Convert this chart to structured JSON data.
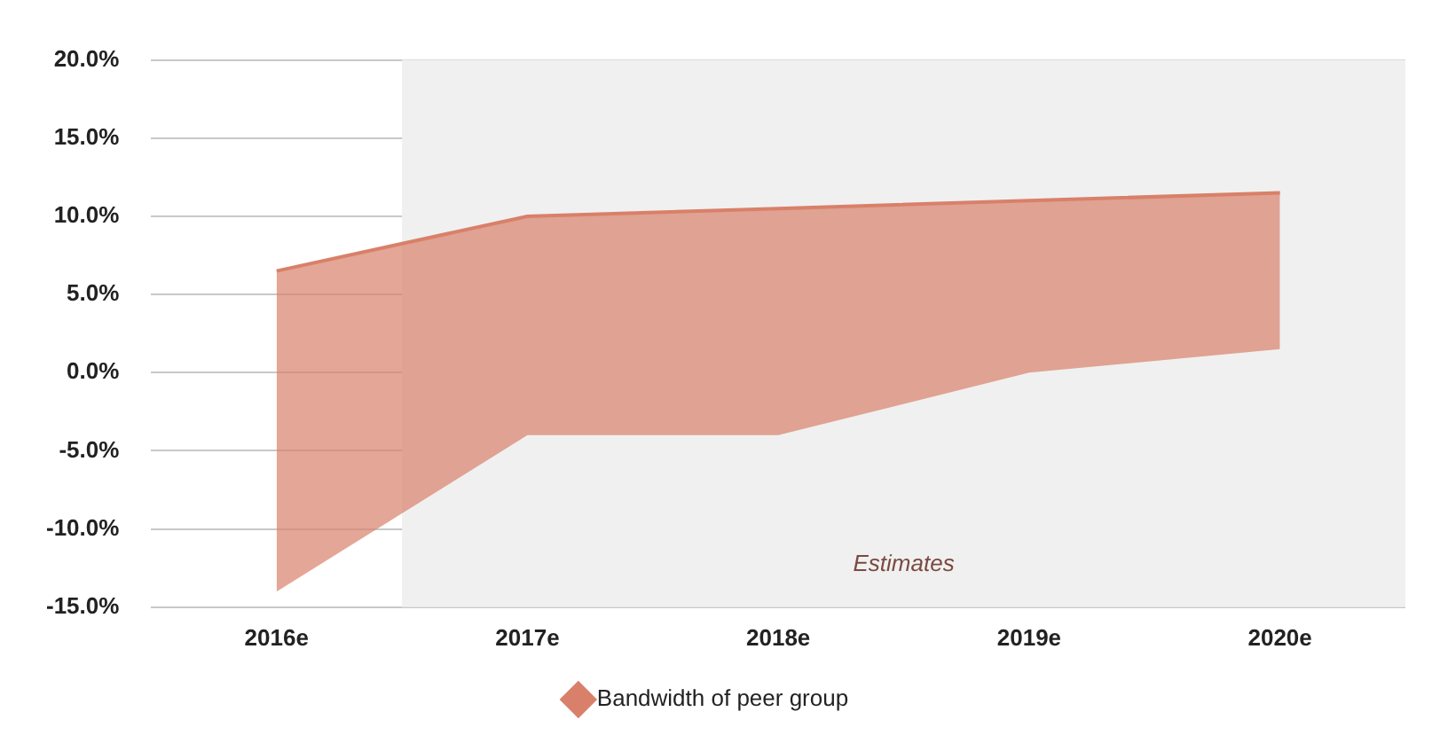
{
  "chart_data": {
    "type": "line",
    "categories": [
      "2016e",
      "2017e",
      "2018e",
      "2019e",
      "2020e"
    ],
    "series": [
      {
        "name": "Bandwidth of peer group",
        "color": "#d9806a",
        "values": [
          6.5,
          10,
          10.5,
          11,
          11.5
        ],
        "lower": [
          -14,
          -4,
          -4,
          0,
          1.5
        ],
        "upper": [
          6.5,
          10,
          10.5,
          11,
          11.5
        ]
      }
    ],
    "ylim": [
      -15,
      20
    ],
    "yticks": [
      {
        "value": -15,
        "label": "-15.0%"
      },
      {
        "value": -10,
        "label": "-10.0%"
      },
      {
        "value": -5,
        "label": "-5.0%"
      },
      {
        "value": 0,
        "label": "0.0%"
      },
      {
        "value": 5,
        "label": "5.0%"
      },
      {
        "value": 10,
        "label": "10.0%"
      },
      {
        "value": 15,
        "label": "15.0%"
      },
      {
        "value": 20,
        "label": "20.0%"
      }
    ],
    "bands": [
      {
        "axis": "x",
        "from": "2017e",
        "to": "2020e",
        "label": "Estimates",
        "color": "#f0f0f0"
      }
    ],
    "grid": "y",
    "legend": "bottom"
  }
}
